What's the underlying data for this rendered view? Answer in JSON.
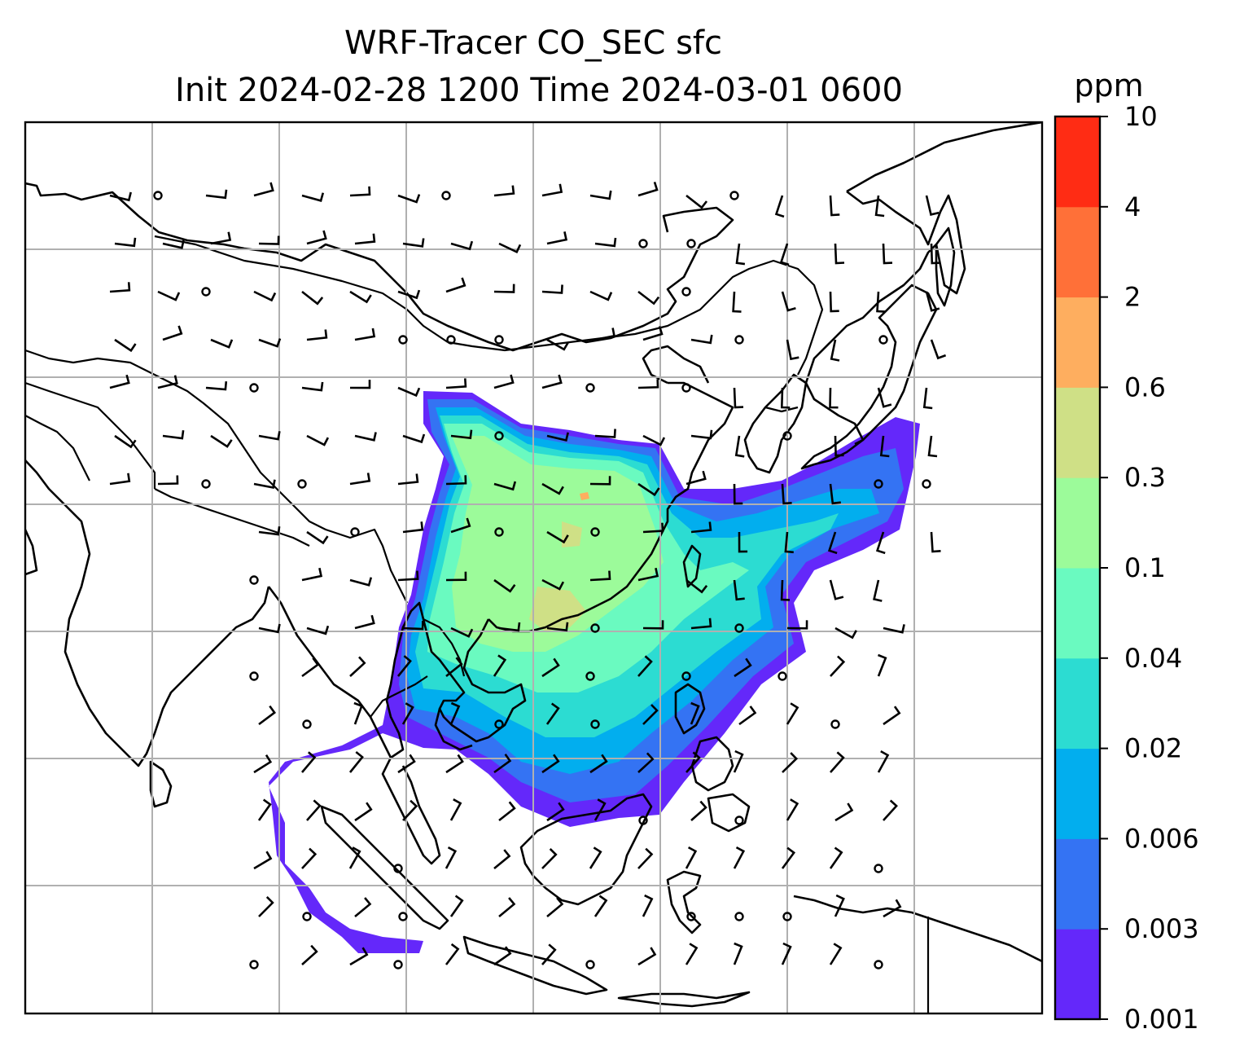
{
  "title": {
    "line1": "WRF-Tracer CO_SEC sfc",
    "line2": "Init 2024-02-28 1200 Time 2024-03-01 0600"
  },
  "colorbar": {
    "unit": "ppm",
    "levels": [
      "0.001",
      "0.003",
      "0.006",
      "0.02",
      "0.04",
      "0.1",
      "0.3",
      "0.6",
      "2",
      "4",
      "10"
    ],
    "colors": [
      "#6428fa",
      "#3473f3",
      "#02aeee",
      "#2cdcd2",
      "#6afac0",
      "#9cfb9a",
      "#cfe086",
      "#feae5f",
      "#ff7038",
      "#ff2c14"
    ]
  },
  "map": {
    "land_outline": "#000000",
    "gridline_color": "#b0b0b0",
    "wind_barbs": "black",
    "calm_markers": "circles"
  }
}
